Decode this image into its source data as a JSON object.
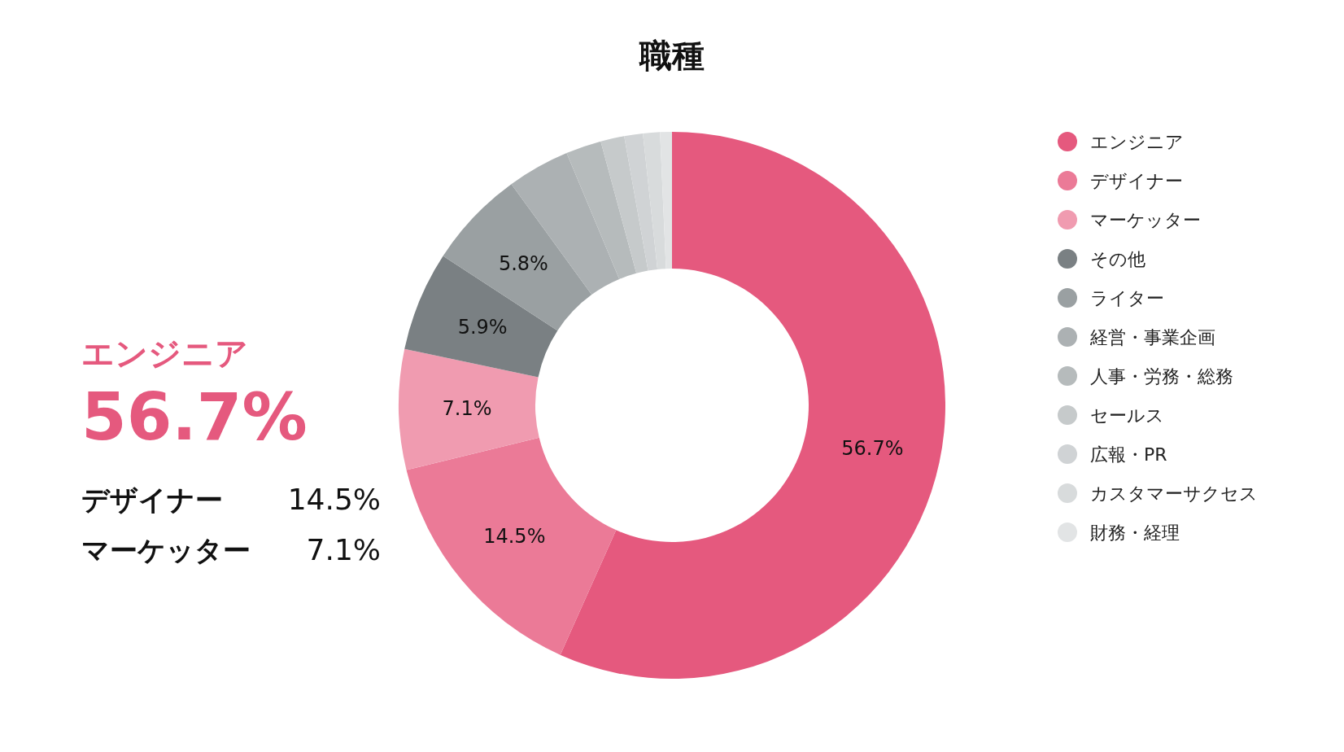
{
  "chart_data": {
    "type": "donut",
    "title": "職種",
    "categories": [
      "エンジニア",
      "デザイナー",
      "マーケッター",
      "その他",
      "ライター",
      "経営・事業企画",
      "人事・労務・総務",
      "セールス",
      "広報・PR",
      "カスタマーサクセス",
      "財務・経理"
    ],
    "values": [
      56.7,
      14.5,
      7.1,
      5.9,
      5.8,
      3.7,
      2.1,
      1.4,
      1.1,
      1.0,
      0.7
    ],
    "colors": [
      "#e5597e",
      "#eb7a97",
      "#f09bb0",
      "#7a8083",
      "#9aa0a2",
      "#acb1b3",
      "#b6bbbc",
      "#c6cacb",
      "#d0d3d5",
      "#d8dbdc",
      "#e2e4e5"
    ],
    "value_labels": [
      "56.7%",
      "14.5%",
      "7.1%",
      "5.9%",
      "5.8%",
      null,
      null,
      null,
      null,
      null,
      null
    ],
    "legend": "right",
    "annotations": [
      "エンジニア",
      "56.7%",
      "デザイナー",
      "14.5%",
      "マーケッター",
      "7.1%"
    ]
  }
}
